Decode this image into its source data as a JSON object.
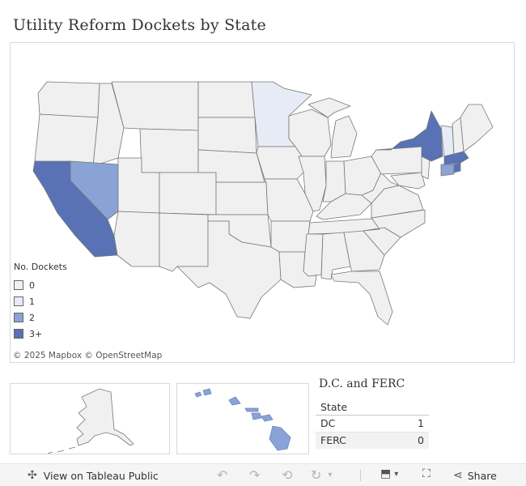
{
  "title": "Utility Reform Dockets by State",
  "colors": {
    "none": "#f0f0f0",
    "one": "#e6ebf6",
    "two": "#8aa3d6",
    "three_plus": "#5872b5",
    "border": "#777777"
  },
  "legend": {
    "title": "No. Dockets",
    "items": [
      {
        "label": "0",
        "color": "#f0f0f0"
      },
      {
        "label": "1",
        "color": "#e6ebf6"
      },
      {
        "label": "2",
        "color": "#8aa3d6"
      },
      {
        "label": "3+",
        "color": "#5872b5"
      }
    ]
  },
  "states": {
    "highlighted": [
      {
        "name": "California",
        "category": "3+"
      },
      {
        "name": "Nevada",
        "category": "2"
      },
      {
        "name": "Minnesota",
        "category": "1"
      },
      {
        "name": "New York",
        "category": "3+"
      },
      {
        "name": "Massachusetts",
        "category": "3+"
      },
      {
        "name": "Connecticut",
        "category": "2"
      },
      {
        "name": "Vermont",
        "category": "1"
      },
      {
        "name": "Hawaii",
        "category": "2"
      }
    ],
    "default_category": "0"
  },
  "attribution": "© 2025 Mapbox  © OpenStreetMap",
  "dc_ferc": {
    "title": "D.C. and FERC",
    "header": "State",
    "rows": [
      {
        "state": "DC",
        "value": "1"
      },
      {
        "state": "FERC",
        "value": "0"
      }
    ]
  },
  "toolbar": {
    "view_label": "View on Tableau Public",
    "share_label": "Share",
    "icons": [
      "tableau-logo-icon",
      "undo-icon",
      "redo-icon",
      "revert-icon",
      "refresh-icon",
      "download-icon",
      "fullscreen-icon",
      "share-icon"
    ]
  }
}
